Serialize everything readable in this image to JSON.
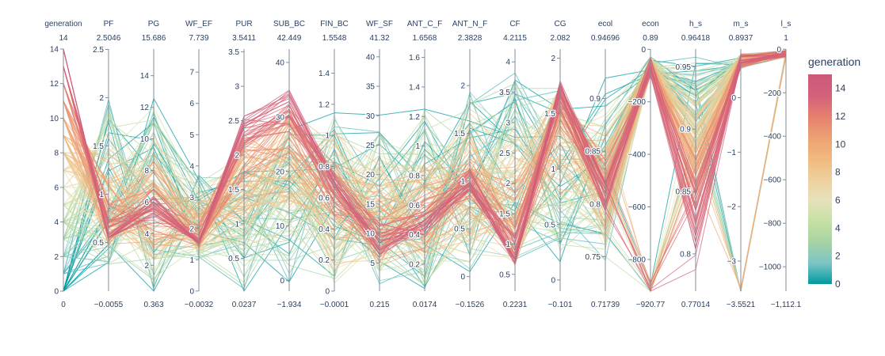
{
  "chart_data": {
    "type": "parallel_coordinates",
    "color_variable": "generation",
    "colorscale": [
      "#009b9e",
      "#7cc5c6",
      "#a7d3a3",
      "#c6e1a3",
      "#e7e1bc",
      "#eed09c",
      "#f0b97d",
      "#eda074",
      "#e57f6f",
      "#d4607b",
      "#cb5a7a"
    ],
    "n_lines": 170,
    "dimensions": [
      {
        "name": "generation",
        "max_label": "14",
        "min_label": "0",
        "range": [
          0,
          14
        ],
        "ticks": [
          {
            "v": 0,
            "t": "0"
          },
          {
            "v": 2,
            "t": "2"
          },
          {
            "v": 4,
            "t": "4"
          },
          {
            "v": 6,
            "t": "6"
          },
          {
            "v": 8,
            "t": "8"
          },
          {
            "v": 10,
            "t": "10"
          },
          {
            "v": 12,
            "t": "12"
          },
          {
            "v": 14,
            "t": "14"
          }
        ]
      },
      {
        "name": "PF",
        "max_label": "2.5046",
        "min_label": "−0.0055",
        "range": [
          -0.0055,
          2.5046
        ],
        "ticks": [
          {
            "v": 0.5,
            "t": "0.5"
          },
          {
            "v": 1,
            "t": "1"
          },
          {
            "v": 1.5,
            "t": "1.5"
          },
          {
            "v": 2,
            "t": "2"
          },
          {
            "v": 2.5,
            "t": "2.5"
          }
        ]
      },
      {
        "name": "PG",
        "max_label": "15.686",
        "min_label": "0.363",
        "range": [
          0.363,
          15.686
        ],
        "ticks": [
          {
            "v": 2,
            "t": "2"
          },
          {
            "v": 4,
            "t": "4"
          },
          {
            "v": 6,
            "t": "6"
          },
          {
            "v": 8,
            "t": "8"
          },
          {
            "v": 10,
            "t": "10"
          },
          {
            "v": 12,
            "t": "12"
          },
          {
            "v": 14,
            "t": "14"
          }
        ]
      },
      {
        "name": "WF_EF",
        "max_label": "7.739",
        "min_label": "−0.0032",
        "range": [
          -0.0032,
          7.739
        ],
        "ticks": [
          {
            "v": 0,
            "t": "0"
          },
          {
            "v": 1,
            "t": "1"
          },
          {
            "v": 2,
            "t": "2"
          },
          {
            "v": 3,
            "t": "3"
          },
          {
            "v": 4,
            "t": "4"
          },
          {
            "v": 5,
            "t": "5"
          },
          {
            "v": 6,
            "t": "6"
          },
          {
            "v": 7,
            "t": "7"
          }
        ]
      },
      {
        "name": "PUR",
        "max_label": "3.5411",
        "min_label": "0.0237",
        "range": [
          0.0237,
          3.5411
        ],
        "ticks": [
          {
            "v": 0.5,
            "t": "0.5"
          },
          {
            "v": 1,
            "t": "1"
          },
          {
            "v": 1.5,
            "t": "1.5"
          },
          {
            "v": 2,
            "t": "2"
          },
          {
            "v": 2.5,
            "t": "2.5"
          },
          {
            "v": 3,
            "t": "3"
          },
          {
            "v": 3.5,
            "t": "3.5"
          }
        ]
      },
      {
        "name": "SUB_BC",
        "max_label": "42.449",
        "min_label": "−1.934",
        "range": [
          -1.934,
          42.449
        ],
        "ticks": [
          {
            "v": 0,
            "t": "0"
          },
          {
            "v": 10,
            "t": "10"
          },
          {
            "v": 20,
            "t": "20"
          },
          {
            "v": 30,
            "t": "30"
          },
          {
            "v": 40,
            "t": "40"
          }
        ]
      },
      {
        "name": "FIN_BC",
        "max_label": "1.5548",
        "min_label": "−0.0001",
        "range": [
          -0.0001,
          1.5548
        ],
        "ticks": [
          {
            "v": 0,
            "t": "0"
          },
          {
            "v": 0.2,
            "t": "0.2"
          },
          {
            "v": 0.4,
            "t": "0.4"
          },
          {
            "v": 0.6,
            "t": "0.6"
          },
          {
            "v": 0.8,
            "t": "0.8"
          },
          {
            "v": 1,
            "t": "1"
          },
          {
            "v": 1.2,
            "t": "1.2"
          },
          {
            "v": 1.4,
            "t": "1.4"
          }
        ]
      },
      {
        "name": "WF_SF",
        "max_label": "41.32",
        "min_label": "0.215",
        "range": [
          0.215,
          41.32
        ],
        "ticks": [
          {
            "v": 5,
            "t": "5"
          },
          {
            "v": 10,
            "t": "10"
          },
          {
            "v": 15,
            "t": "15"
          },
          {
            "v": 20,
            "t": "20"
          },
          {
            "v": 25,
            "t": "25"
          },
          {
            "v": 30,
            "t": "30"
          },
          {
            "v": 35,
            "t": "35"
          },
          {
            "v": 40,
            "t": "40"
          }
        ]
      },
      {
        "name": "ANT_C_F",
        "max_label": "1.6568",
        "min_label": "0.0174",
        "range": [
          0.0174,
          1.6568
        ],
        "ticks": [
          {
            "v": 0.2,
            "t": "0.2"
          },
          {
            "v": 0.4,
            "t": "0.4"
          },
          {
            "v": 0.6,
            "t": "0.6"
          },
          {
            "v": 0.8,
            "t": "0.8"
          },
          {
            "v": 1,
            "t": "1"
          },
          {
            "v": 1.2,
            "t": "1.2"
          },
          {
            "v": 1.4,
            "t": "1.4"
          },
          {
            "v": 1.6,
            "t": "1.6"
          }
        ]
      },
      {
        "name": "ANT_N_F",
        "max_label": "2.3828",
        "min_label": "−0.1526",
        "range": [
          -0.1526,
          2.3828
        ],
        "ticks": [
          {
            "v": 0,
            "t": "0"
          },
          {
            "v": 0.5,
            "t": "0.5"
          },
          {
            "v": 1,
            "t": "1"
          },
          {
            "v": 1.5,
            "t": "1.5"
          },
          {
            "v": 2,
            "t": "2"
          }
        ]
      },
      {
        "name": "CF",
        "max_label": "4.2115",
        "min_label": "0.2231",
        "range": [
          0.2231,
          4.2115
        ],
        "ticks": [
          {
            "v": 0.5,
            "t": "0.5"
          },
          {
            "v": 1,
            "t": "1"
          },
          {
            "v": 1.5,
            "t": "1.5"
          },
          {
            "v": 2,
            "t": "2"
          },
          {
            "v": 2.5,
            "t": "2.5"
          },
          {
            "v": 3,
            "t": "3"
          },
          {
            "v": 3.5,
            "t": "3.5"
          },
          {
            "v": 4,
            "t": "4"
          }
        ]
      },
      {
        "name": "CG",
        "max_label": "2.082",
        "min_label": "−0.101",
        "range": [
          -0.101,
          2.082
        ],
        "ticks": [
          {
            "v": 0,
            "t": "0"
          },
          {
            "v": 0.5,
            "t": "0.5"
          },
          {
            "v": 1,
            "t": "1"
          },
          {
            "v": 1.5,
            "t": "1.5"
          },
          {
            "v": 2,
            "t": "2"
          }
        ]
      },
      {
        "name": "ecol",
        "max_label": "0.94696",
        "min_label": "0.71739",
        "range": [
          0.71739,
          0.94696
        ],
        "ticks": [
          {
            "v": 0.75,
            "t": "0.75"
          },
          {
            "v": 0.8,
            "t": "0.8"
          },
          {
            "v": 0.85,
            "t": "0.85"
          },
          {
            "v": 0.9,
            "t": "0.9"
          }
        ]
      },
      {
        "name": "econ",
        "max_label": "0.89",
        "min_label": "−920.77",
        "range": [
          -920.77,
          0.89
        ],
        "ticks": [
          {
            "v": -800,
            "t": "−800"
          },
          {
            "v": -600,
            "t": "−600"
          },
          {
            "v": -400,
            "t": "−400"
          },
          {
            "v": -200,
            "t": "−200"
          },
          {
            "v": 0,
            "t": "0"
          }
        ]
      },
      {
        "name": "h_s",
        "max_label": "0.96418",
        "min_label": "0.77014",
        "range": [
          0.77014,
          0.96418
        ],
        "ticks": [
          {
            "v": 0.8,
            "t": "0.8"
          },
          {
            "v": 0.85,
            "t": "0.85"
          },
          {
            "v": 0.9,
            "t": "0.9"
          },
          {
            "v": 0.95,
            "t": "0.95"
          }
        ]
      },
      {
        "name": "m_s",
        "max_label": "0.8937",
        "min_label": "−3.5521",
        "range": [
          -3.5521,
          0.8937
        ],
        "ticks": [
          {
            "v": -3,
            "t": "−3"
          },
          {
            "v": -2,
            "t": "−2"
          },
          {
            "v": -1,
            "t": "−1"
          },
          {
            "v": 0,
            "t": "0"
          }
        ]
      },
      {
        "name": "l_s",
        "max_label": "1",
        "min_label": "−1,112.1",
        "range": [
          -1112.1,
          1
        ],
        "ticks": [
          {
            "v": -1000,
            "t": "−1000"
          },
          {
            "v": -800,
            "t": "−800"
          },
          {
            "v": -600,
            "t": "−600"
          },
          {
            "v": -400,
            "t": "−400"
          },
          {
            "v": -200,
            "t": "−200"
          },
          {
            "v": 0,
            "t": "0"
          }
        ]
      }
    ],
    "colorbar": {
      "title": "generation",
      "range": [
        0,
        15
      ],
      "ticks": [
        {
          "v": 0,
          "t": "0"
        },
        {
          "v": 2,
          "t": "2"
        },
        {
          "v": 4,
          "t": "4"
        },
        {
          "v": 6,
          "t": "6"
        },
        {
          "v": 8,
          "t": "8"
        },
        {
          "v": 10,
          "t": "10"
        },
        {
          "v": 12,
          "t": "12"
        },
        {
          "v": 14,
          "t": "14"
        }
      ]
    }
  }
}
